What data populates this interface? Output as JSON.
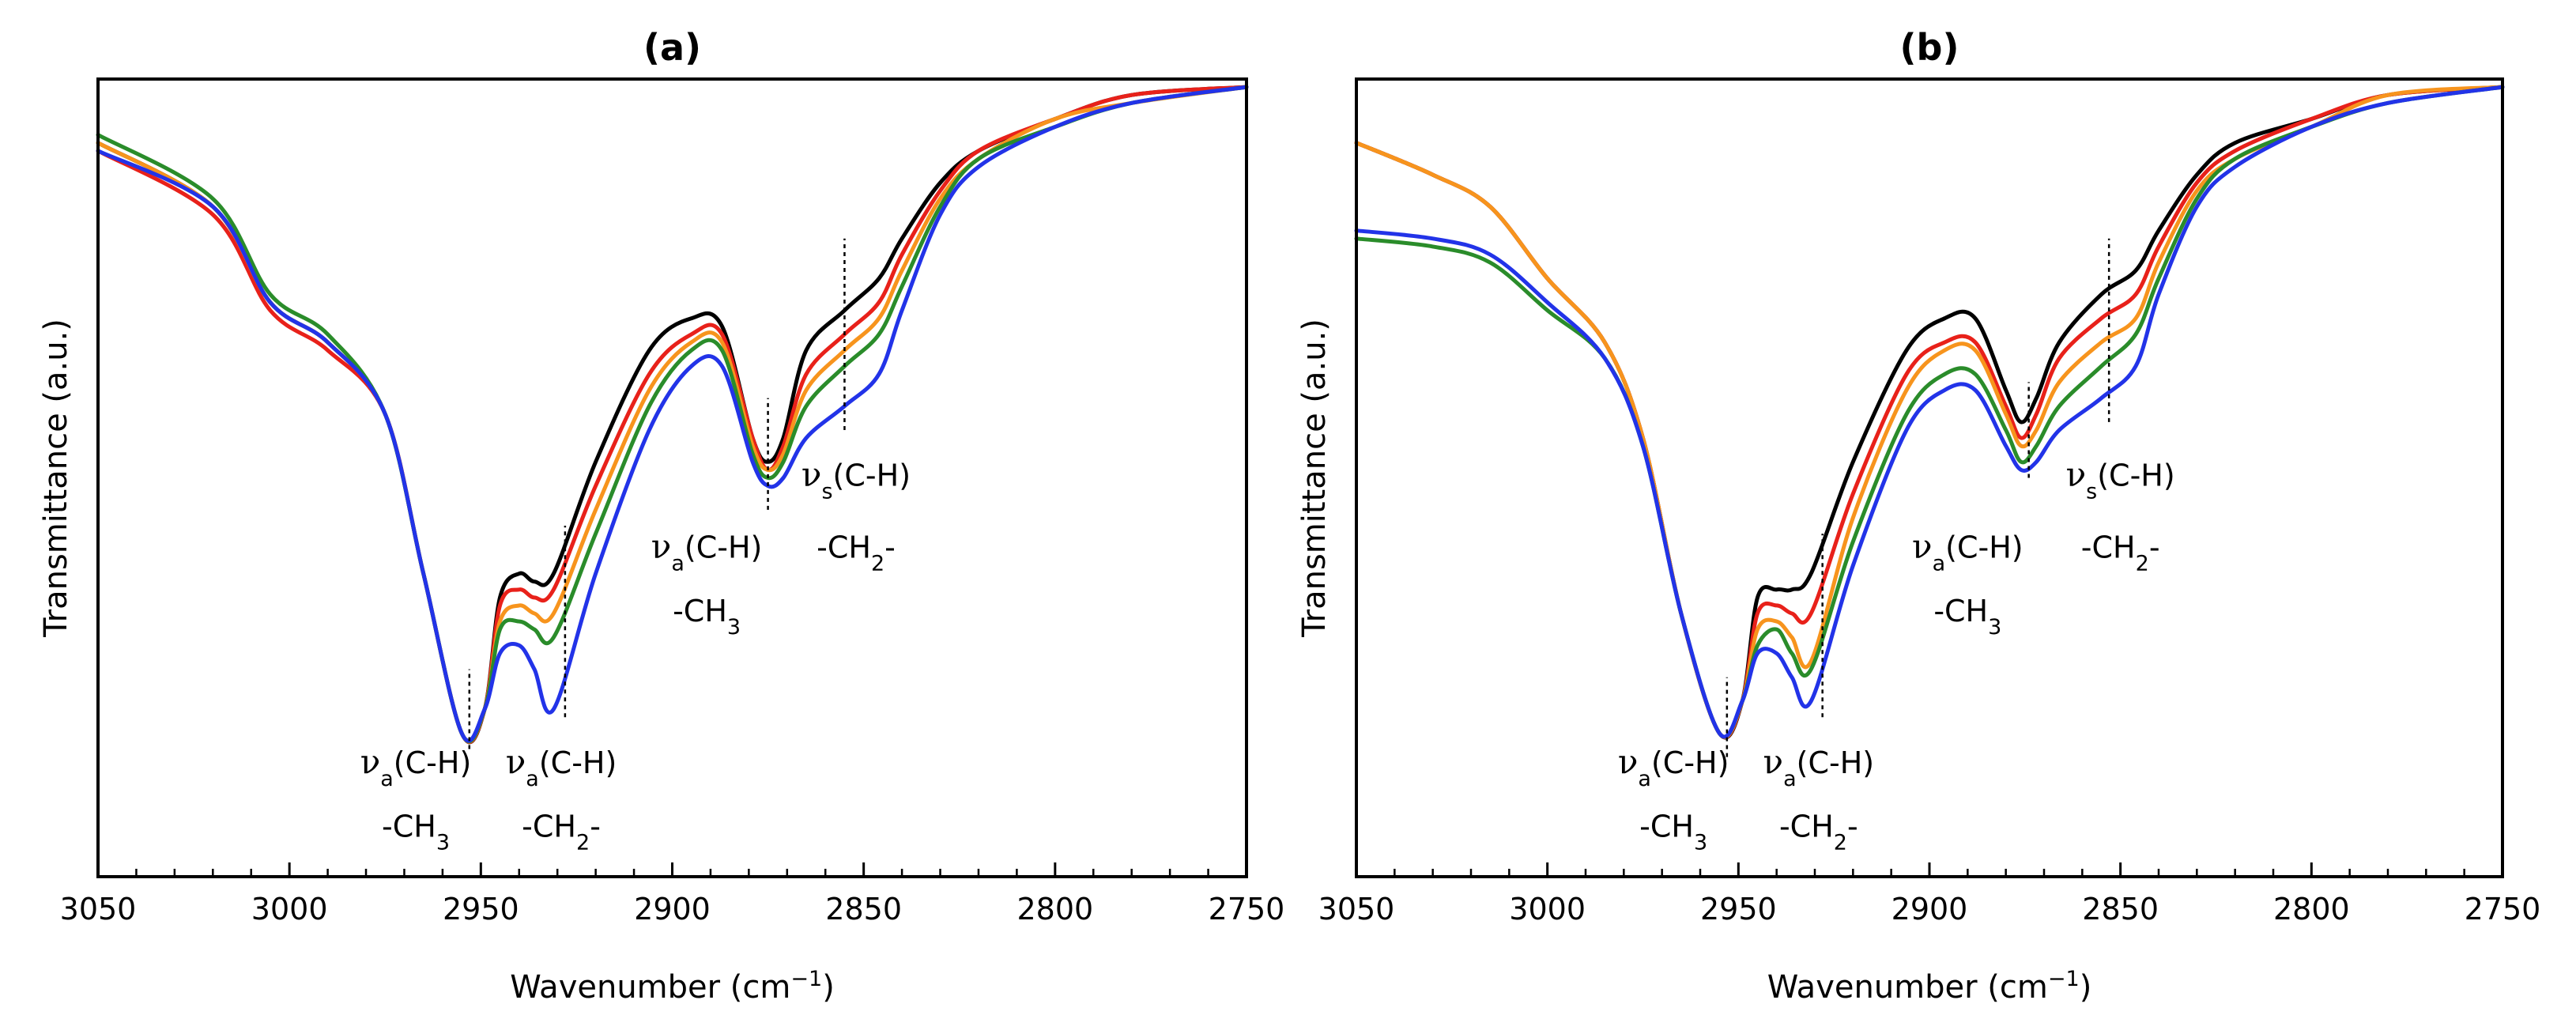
{
  "chart_data": [
    {
      "panel": "a",
      "type": "line",
      "title": "(a)",
      "xlabel": "Wavenumber (cm⁻¹)",
      "xlabel_main": "Wavenumber (cm",
      "xlabel_sup": "−1",
      "xlabel_end": ")",
      "ylabel": "Transmittance (a.u.)",
      "x_reversed": true,
      "xlim": [
        3050,
        2750
      ],
      "ylim": [
        0,
        1
      ],
      "y_ticks_labeled": false,
      "xticks": [
        3050,
        3000,
        2950,
        2900,
        2850,
        2800,
        2750
      ],
      "xtick_labels": [
        "3050",
        "3000",
        "2950",
        "2900",
        "2850",
        "2800",
        "2750"
      ],
      "legend": "none",
      "grid": false,
      "series": [
        {
          "color": "#000000",
          "x": [
            3050,
            3020,
            3005,
            2990,
            2975,
            2965,
            2955,
            2949,
            2945,
            2940,
            2936,
            2931,
            2920,
            2906,
            2895,
            2887,
            2879,
            2875,
            2871,
            2865,
            2855,
            2846,
            2840,
            2830,
            2820,
            2800,
            2780,
            2750
          ],
          "y": [
            0.92,
            0.84,
            0.72,
            0.67,
            0.58,
            0.38,
            0.18,
            0.21,
            0.35,
            0.38,
            0.37,
            0.38,
            0.52,
            0.66,
            0.7,
            0.69,
            0.55,
            0.52,
            0.55,
            0.66,
            0.71,
            0.75,
            0.8,
            0.87,
            0.91,
            0.95,
            0.98,
            0.99
          ]
        },
        {
          "color": "#e8211a",
          "x": [
            3050,
            3020,
            3005,
            2990,
            2975,
            2965,
            2955,
            2949,
            2945,
            2940,
            2936,
            2931,
            2920,
            2906,
            2895,
            2887,
            2879,
            2875,
            2871,
            2865,
            2855,
            2846,
            2840,
            2830,
            2820,
            2800,
            2780,
            2750
          ],
          "y": [
            0.91,
            0.83,
            0.71,
            0.66,
            0.58,
            0.38,
            0.18,
            0.21,
            0.34,
            0.36,
            0.35,
            0.36,
            0.49,
            0.63,
            0.68,
            0.68,
            0.55,
            0.51,
            0.54,
            0.63,
            0.68,
            0.72,
            0.78,
            0.86,
            0.91,
            0.95,
            0.98,
            0.99
          ]
        },
        {
          "color": "#f7941d",
          "x": [
            3050,
            3020,
            3005,
            2990,
            2975,
            2965,
            2955,
            2949,
            2945,
            2940,
            2936,
            2931,
            2920,
            2906,
            2895,
            2887,
            2879,
            2875,
            2871,
            2865,
            2855,
            2846,
            2840,
            2830,
            2820,
            2800,
            2780,
            2750
          ],
          "y": [
            0.92,
            0.84,
            0.72,
            0.67,
            0.58,
            0.38,
            0.18,
            0.21,
            0.32,
            0.34,
            0.33,
            0.33,
            0.46,
            0.61,
            0.67,
            0.67,
            0.54,
            0.51,
            0.53,
            0.61,
            0.66,
            0.7,
            0.76,
            0.85,
            0.9,
            0.95,
            0.97,
            0.99
          ]
        },
        {
          "color": "#2a8c2a",
          "x": [
            3050,
            3020,
            3005,
            2990,
            2975,
            2965,
            2955,
            2949,
            2945,
            2940,
            2936,
            2931,
            2920,
            2906,
            2895,
            2887,
            2879,
            2875,
            2871,
            2865,
            2855,
            2846,
            2840,
            2830,
            2820,
            2800,
            2780,
            2750
          ],
          "y": [
            0.93,
            0.85,
            0.73,
            0.68,
            0.58,
            0.38,
            0.18,
            0.21,
            0.31,
            0.32,
            0.31,
            0.3,
            0.43,
            0.59,
            0.66,
            0.66,
            0.53,
            0.5,
            0.52,
            0.59,
            0.64,
            0.68,
            0.74,
            0.84,
            0.9,
            0.94,
            0.97,
            0.99
          ]
        },
        {
          "color": "#2233e8",
          "x": [
            3050,
            3020,
            3005,
            2990,
            2975,
            2965,
            2955,
            2949,
            2945,
            2940,
            2936,
            2931,
            2920,
            2906,
            2895,
            2887,
            2879,
            2875,
            2871,
            2865,
            2855,
            2846,
            2840,
            2830,
            2820,
            2800,
            2780,
            2750
          ],
          "y": [
            0.91,
            0.84,
            0.72,
            0.67,
            0.58,
            0.38,
            0.18,
            0.21,
            0.28,
            0.29,
            0.26,
            0.21,
            0.38,
            0.56,
            0.64,
            0.64,
            0.52,
            0.49,
            0.5,
            0.55,
            0.59,
            0.63,
            0.71,
            0.83,
            0.89,
            0.94,
            0.97,
            0.99
          ]
        }
      ],
      "annotations": [
        {
          "x_mark": 2953,
          "mark_from": 0.16,
          "mark_to": 0.26,
          "line1_sym": "ν",
          "line1_sub": "a",
          "line1_rest": "(C-H)",
          "line2": "-CH",
          "line2_sub": "3",
          "line2_end": "",
          "label_x": 2967,
          "line1_y": 0.13,
          "line2_y": 0.05
        },
        {
          "x_mark": 2928,
          "mark_from": 0.2,
          "mark_to": 0.44,
          "line1_sym": "ν",
          "line1_sub": "a",
          "line1_rest": "(C-H)",
          "line2": "-CH",
          "line2_sub": "2",
          "line2_end": "-",
          "label_x": 2929,
          "line1_y": 0.13,
          "line2_y": 0.05
        },
        {
          "x_mark": 2875,
          "mark_from": 0.46,
          "mark_to": 0.6,
          "line1_sym": "ν",
          "line1_sub": "a",
          "line1_rest": "(C-H)",
          "line2": "-CH",
          "line2_sub": "3",
          "line2_end": "",
          "label_x": 2891,
          "line1_y": 0.4,
          "line2_y": 0.32
        },
        {
          "x_mark": 2855,
          "mark_from": 0.56,
          "mark_to": 0.8,
          "line1_sym": "ν",
          "line1_sub": "s",
          "line1_rest": "(C-H)",
          "line2": "-CH",
          "line2_sub": "2",
          "line2_end": "-",
          "label_x": 2852,
          "line1_y": 0.49,
          "line2_y": 0.4
        }
      ]
    },
    {
      "panel": "b",
      "type": "line",
      "title": "(b)",
      "xlabel": "Wavenumber (cm⁻¹)",
      "xlabel_main": "Wavenumber (cm",
      "xlabel_sup": "−1",
      "xlabel_end": ")",
      "ylabel": "Transmittance (a.u.)",
      "x_reversed": true,
      "xlim": [
        3050,
        2750
      ],
      "ylim": [
        0,
        1
      ],
      "y_ticks_labeled": false,
      "xticks": [
        3050,
        3000,
        2950,
        2900,
        2850,
        2800,
        2750
      ],
      "xtick_labels": [
        "3050",
        "3000",
        "2950",
        "2900",
        "2850",
        "2800",
        "2750"
      ],
      "legend": "none",
      "grid": false,
      "series": [
        {
          "color": "#000000",
          "x": [
            3050,
            3030,
            3015,
            3000,
            2985,
            2975,
            2965,
            2955,
            2949,
            2945,
            2940,
            2936,
            2931,
            2920,
            2906,
            2896,
            2888,
            2880,
            2876,
            2872,
            2866,
            2855,
            2846,
            2840,
            2830,
            2820,
            2800,
            2780,
            2750
          ],
          "y": [
            0.92,
            0.88,
            0.84,
            0.75,
            0.67,
            0.55,
            0.33,
            0.18,
            0.22,
            0.35,
            0.36,
            0.36,
            0.38,
            0.52,
            0.66,
            0.7,
            0.7,
            0.61,
            0.57,
            0.6,
            0.67,
            0.73,
            0.76,
            0.81,
            0.88,
            0.92,
            0.95,
            0.98,
            0.99
          ]
        },
        {
          "color": "#e8211a",
          "x": [
            3050,
            3030,
            3015,
            3000,
            2985,
            2975,
            2965,
            2955,
            2949,
            2945,
            2940,
            2936,
            2931,
            2920,
            2906,
            2896,
            2888,
            2880,
            2876,
            2872,
            2866,
            2855,
            2846,
            2840,
            2830,
            2820,
            2800,
            2780,
            2750
          ],
          "y": [
            0.92,
            0.88,
            0.84,
            0.75,
            0.67,
            0.55,
            0.33,
            0.18,
            0.22,
            0.33,
            0.34,
            0.33,
            0.33,
            0.48,
            0.63,
            0.67,
            0.67,
            0.59,
            0.55,
            0.58,
            0.65,
            0.7,
            0.73,
            0.79,
            0.87,
            0.91,
            0.95,
            0.98,
            0.99
          ]
        },
        {
          "color": "#f7941d",
          "x": [
            3050,
            3030,
            3015,
            3000,
            2985,
            2975,
            2965,
            2955,
            2949,
            2945,
            2940,
            2936,
            2931,
            2920,
            2906,
            2896,
            2888,
            2880,
            2876,
            2872,
            2866,
            2855,
            2846,
            2840,
            2830,
            2820,
            2800,
            2780,
            2750
          ],
          "y": [
            0.92,
            0.88,
            0.84,
            0.75,
            0.67,
            0.55,
            0.33,
            0.18,
            0.22,
            0.31,
            0.32,
            0.3,
            0.27,
            0.45,
            0.61,
            0.66,
            0.66,
            0.58,
            0.54,
            0.56,
            0.62,
            0.67,
            0.7,
            0.77,
            0.86,
            0.9,
            0.94,
            0.98,
            0.99
          ]
        },
        {
          "color": "#2a8c2a",
          "x": [
            3050,
            3030,
            3015,
            3000,
            2985,
            2975,
            2965,
            2955,
            2949,
            2945,
            2940,
            2936,
            2931,
            2920,
            2906,
            2896,
            2888,
            2880,
            2876,
            2872,
            2866,
            2855,
            2846,
            2840,
            2830,
            2820,
            2800,
            2780,
            2750
          ],
          "y": [
            0.8,
            0.79,
            0.77,
            0.71,
            0.65,
            0.54,
            0.33,
            0.18,
            0.22,
            0.29,
            0.31,
            0.28,
            0.26,
            0.42,
            0.58,
            0.63,
            0.63,
            0.56,
            0.52,
            0.54,
            0.59,
            0.64,
            0.68,
            0.75,
            0.85,
            0.9,
            0.94,
            0.97,
            0.99
          ]
        },
        {
          "color": "#2233e8",
          "x": [
            3050,
            3030,
            3015,
            3000,
            2985,
            2975,
            2965,
            2955,
            2949,
            2945,
            2940,
            2936,
            2931,
            2920,
            2906,
            2896,
            2888,
            2880,
            2876,
            2872,
            2866,
            2855,
            2846,
            2840,
            2830,
            2820,
            2800,
            2780,
            2750
          ],
          "y": [
            0.81,
            0.8,
            0.78,
            0.72,
            0.65,
            0.54,
            0.33,
            0.18,
            0.22,
            0.28,
            0.28,
            0.25,
            0.22,
            0.39,
            0.56,
            0.61,
            0.61,
            0.54,
            0.51,
            0.52,
            0.56,
            0.6,
            0.64,
            0.73,
            0.84,
            0.89,
            0.94,
            0.97,
            0.99
          ]
        }
      ],
      "annotations": [
        {
          "x_mark": 2953,
          "mark_from": 0.15,
          "mark_to": 0.25,
          "line1_sym": "ν",
          "line1_sub": "a",
          "line1_rest": "(C-H)",
          "line2": "-CH",
          "line2_sub": "3",
          "line2_end": "",
          "label_x": 2967,
          "line1_y": 0.13,
          "line2_y": 0.05
        },
        {
          "x_mark": 2928,
          "mark_from": 0.2,
          "mark_to": 0.43,
          "line1_sym": "ν",
          "line1_sub": "a",
          "line1_rest": "(C-H)",
          "line2": "-CH",
          "line2_sub": "2",
          "line2_end": "-",
          "label_x": 2929,
          "line1_y": 0.13,
          "line2_y": 0.05
        },
        {
          "x_mark": 2874,
          "mark_from": 0.5,
          "mark_to": 0.62,
          "line1_sym": "ν",
          "line1_sub": "a",
          "line1_rest": "(C-H)",
          "line2": "-CH",
          "line2_sub": "3",
          "line2_end": "",
          "label_x": 2890,
          "line1_y": 0.4,
          "line2_y": 0.32
        },
        {
          "x_mark": 2853,
          "mark_from": 0.57,
          "mark_to": 0.8,
          "line1_sym": "ν",
          "line1_sub": "s",
          "line1_rest": "(C-H)",
          "line2": "-CH",
          "line2_sub": "2",
          "line2_end": "-",
          "label_x": 2850,
          "line1_y": 0.49,
          "line2_y": 0.4
        }
      ]
    }
  ]
}
